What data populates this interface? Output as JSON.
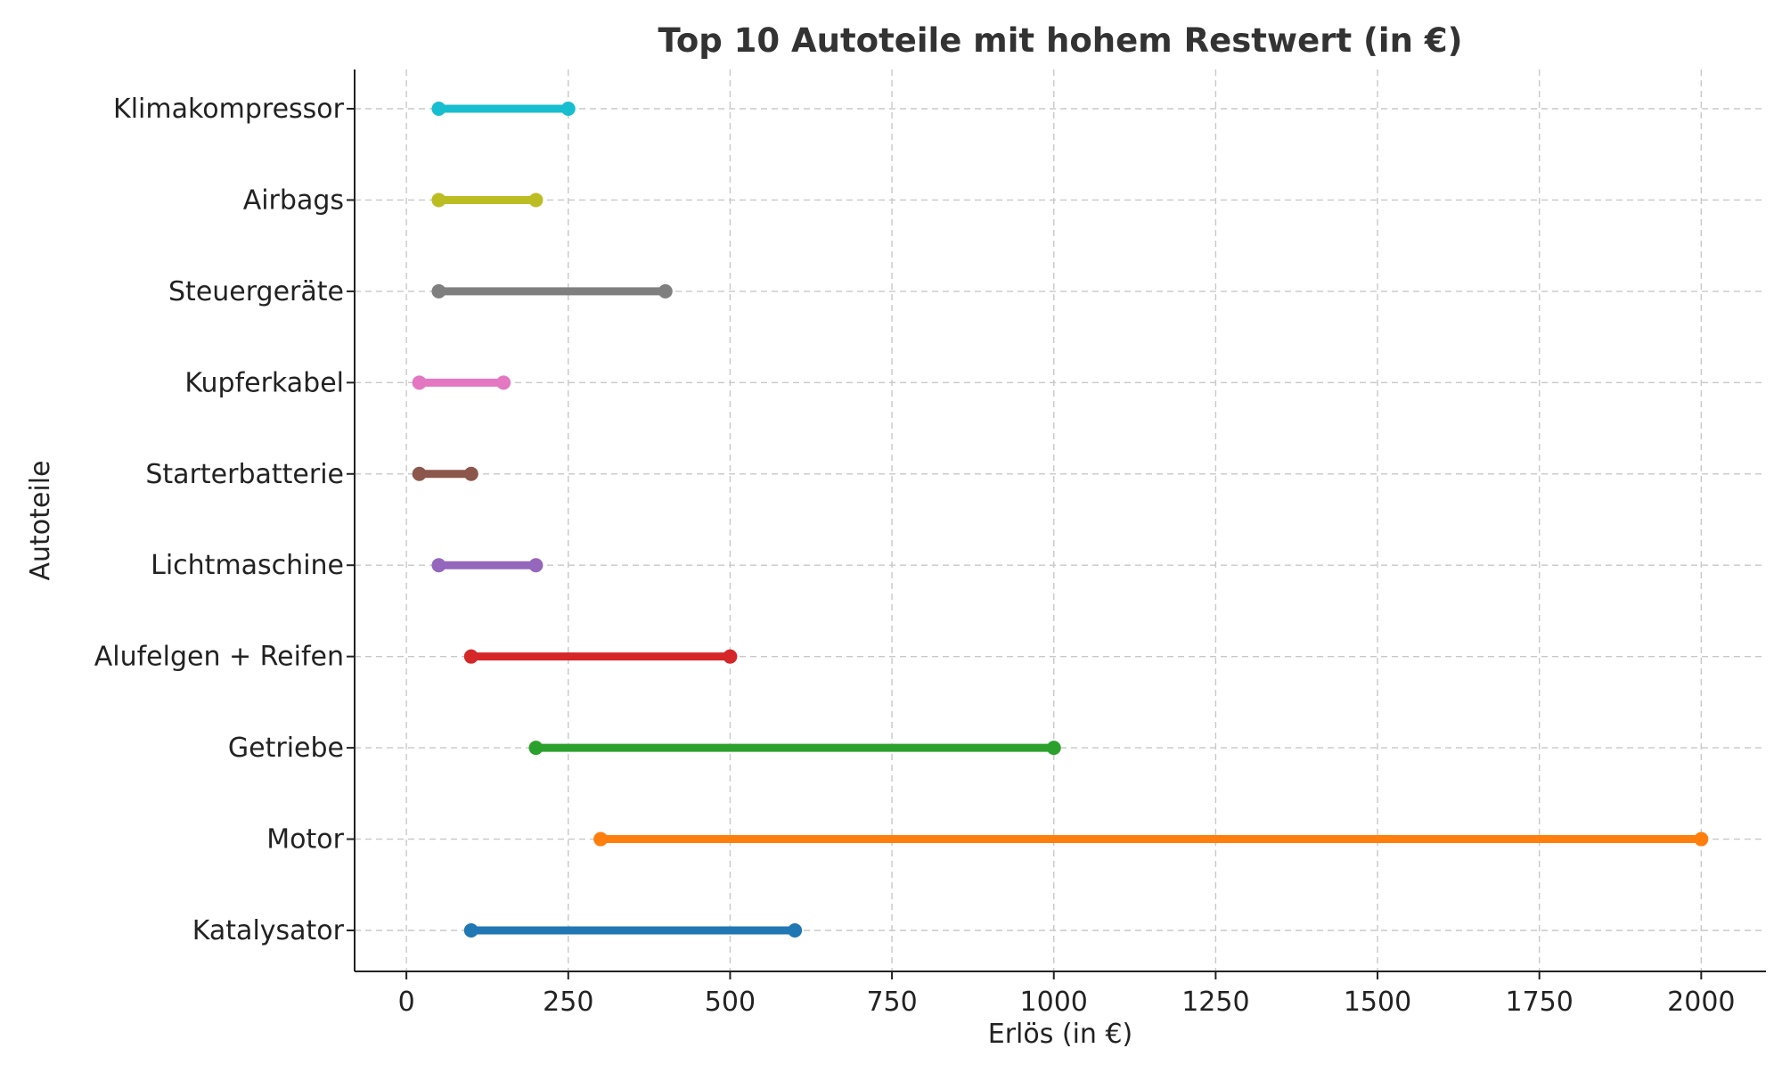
{
  "chart_data": {
    "type": "dumbbell",
    "title": "Top 10 Autoteile mit hohem Restwert (in €)",
    "xlabel": "Erlös (in €)",
    "ylabel": "Autoteile",
    "xlim": [
      -80,
      2100
    ],
    "xticks": [
      0,
      250,
      500,
      750,
      1000,
      1250,
      1500,
      1750,
      2000
    ],
    "grid": true,
    "categories": [
      "Katalysator",
      "Motor",
      "Getriebe",
      "Alufelgen + Reifen",
      "Lichtmaschine",
      "Starterbatterie",
      "Kupferkabel",
      "Steuergeräte",
      "Airbags",
      "Klimakompressor"
    ],
    "series": [
      {
        "category": "Katalysator",
        "min": 100,
        "max": 600,
        "color": "#1f77b4"
      },
      {
        "category": "Motor",
        "min": 300,
        "max": 2000,
        "color": "#ff7f0e"
      },
      {
        "category": "Getriebe",
        "min": 200,
        "max": 1000,
        "color": "#2ca02c"
      },
      {
        "category": "Alufelgen + Reifen",
        "min": 100,
        "max": 500,
        "color": "#d62728"
      },
      {
        "category": "Lichtmaschine",
        "min": 50,
        "max": 200,
        "color": "#9467bd"
      },
      {
        "category": "Starterbatterie",
        "min": 20,
        "max": 100,
        "color": "#8c564b"
      },
      {
        "category": "Kupferkabel",
        "min": 20,
        "max": 150,
        "color": "#e377c2"
      },
      {
        "category": "Steuergeräte",
        "min": 50,
        "max": 400,
        "color": "#7f7f7f"
      },
      {
        "category": "Airbags",
        "min": 50,
        "max": 200,
        "color": "#bcbd22"
      },
      {
        "category": "Klimakompressor",
        "min": 50,
        "max": 250,
        "color": "#17becf"
      }
    ]
  }
}
